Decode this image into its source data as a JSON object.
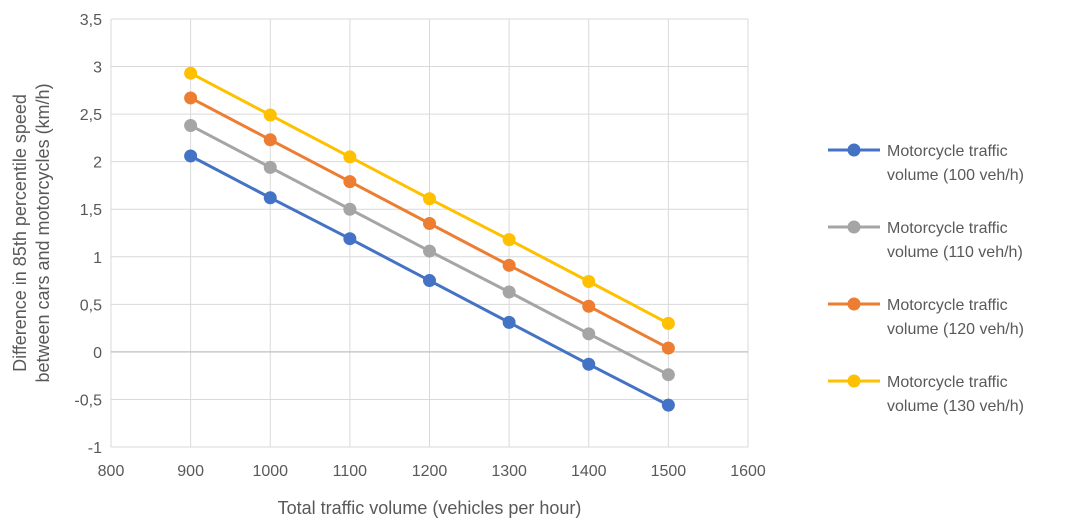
{
  "chart_data": {
    "type": "line",
    "title": "",
    "xlabel": "Total traffic volume (vehicles per hour)",
    "ylabel_line1": "Difference in 85th percentile speed",
    "ylabel_line2": "between cars and motorcycles (km/h)",
    "xlim": [
      800,
      1600
    ],
    "ylim": [
      -1,
      3.5
    ],
    "x_ticks": [
      800,
      900,
      1000,
      1100,
      1200,
      1300,
      1400,
      1500,
      1600
    ],
    "x_tick_labels": [
      "800",
      "900",
      "1000",
      "1100",
      "1200",
      "1300",
      "1400",
      "1500",
      "1600"
    ],
    "y_ticks": [
      -1,
      -0.5,
      0,
      0.5,
      1,
      1.5,
      2,
      2.5,
      3,
      3.5
    ],
    "y_tick_labels": [
      "-1",
      "-0,5",
      "0",
      "0,5",
      "1",
      "1,5",
      "2",
      "2,5",
      "3",
      "3,5"
    ],
    "grid": true,
    "legend_position": "right",
    "x": [
      900,
      1000,
      1100,
      1200,
      1300,
      1400,
      1500
    ],
    "series": [
      {
        "name_line1": "Motorcycle traffic",
        "name_line2": "volume (100 veh/h)",
        "color": "#4472C4",
        "values": [
          2.06,
          1.62,
          1.19,
          0.75,
          0.31,
          -0.13,
          -0.56
        ]
      },
      {
        "name_line1": "Motorcycle traffic",
        "name_line2": "volume (110 veh/h)",
        "color": "#A5A5A5",
        "values": [
          2.38,
          1.94,
          1.5,
          1.06,
          0.63,
          0.19,
          -0.24
        ]
      },
      {
        "name_line1": "Motorcycle traffic",
        "name_line2": "volume (120 veh/h)",
        "color": "#ED7D31",
        "values": [
          2.67,
          2.23,
          1.79,
          1.35,
          0.91,
          0.48,
          0.04
        ]
      },
      {
        "name_line1": "Motorcycle traffic",
        "name_line2": "volume (130 veh/h)",
        "color": "#FFC000",
        "values": [
          2.93,
          2.49,
          2.05,
          1.61,
          1.18,
          0.74,
          0.3
        ]
      }
    ]
  }
}
